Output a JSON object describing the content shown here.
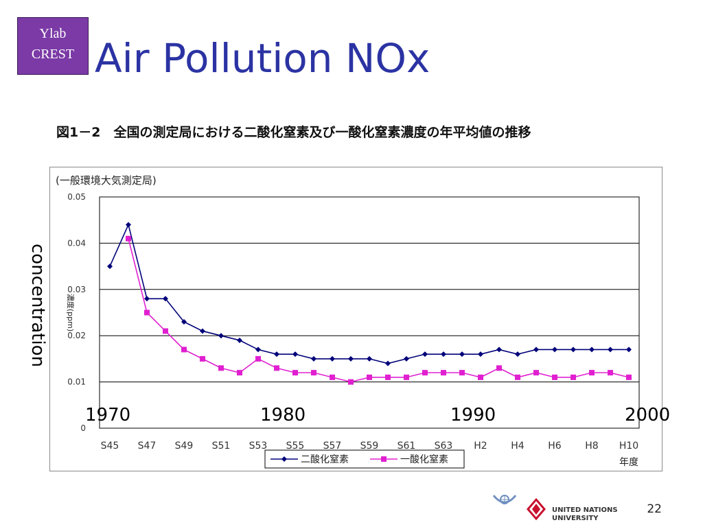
{
  "logo": {
    "line1": "Ylab",
    "line2": "CREST"
  },
  "slide_title": "Air Pollution NOx",
  "figure_caption": "図1－2　全国の測定局における二酸化窒素及び一酸化窒素濃度の年平均値の推移",
  "overlay": {
    "y_axis_label": "concentration",
    "decades": [
      "1970",
      "1980",
      "1990",
      "2000"
    ]
  },
  "page_number": "22",
  "footer": {
    "unu_line1": "UNITED NATIONS",
    "unu_line2": "UNIVERSITY"
  },
  "colors": {
    "title": "#2b33a3",
    "no2_series": "#00007a",
    "no_series": "#e020d0",
    "logo_bg": "#7b3aa6",
    "unu_red": "#c8102e"
  },
  "chart_data": {
    "type": "line",
    "subtitle": "(一般環境大気測定局)",
    "ylabel": "濃度(ppm)",
    "xlabel": "年度",
    "ylim": [
      0,
      0.05
    ],
    "y_ticks": [
      "0",
      "0.01",
      "0.02",
      "0.03",
      "0.04",
      "0.05"
    ],
    "grid": true,
    "legend_position": "bottom",
    "x": [
      "S45",
      "S46",
      "S47",
      "S48",
      "S49",
      "S50",
      "S51",
      "S52",
      "S53",
      "S54",
      "S55",
      "S56",
      "S57",
      "S58",
      "S59",
      "S60",
      "S61",
      "S62",
      "S63",
      "H1",
      "H2",
      "H3",
      "H4",
      "H5",
      "H6",
      "H7",
      "H8",
      "H9",
      "H10"
    ],
    "x_tick_labels": [
      "S45",
      "S47",
      "S49",
      "S51",
      "S53",
      "S55",
      "S57",
      "S59",
      "S61",
      "S63",
      "H2",
      "H4",
      "H6",
      "H8",
      "H10"
    ],
    "series": [
      {
        "name": "二酸化窒素",
        "color": "#00007a",
        "marker": "diamond",
        "values": [
          0.035,
          0.044,
          0.028,
          0.028,
          0.023,
          0.021,
          0.02,
          0.019,
          0.017,
          0.016,
          0.016,
          0.015,
          0.015,
          0.015,
          0.015,
          0.014,
          0.015,
          0.016,
          0.016,
          0.016,
          0.016,
          0.017,
          0.016,
          0.017,
          0.017,
          0.017,
          0.017,
          0.017,
          0.017
        ]
      },
      {
        "name": "一酸化窒素",
        "color": "#e020d0",
        "marker": "square",
        "values": [
          null,
          0.041,
          0.025,
          0.021,
          0.017,
          0.015,
          0.013,
          0.012,
          0.015,
          0.013,
          0.012,
          0.012,
          0.011,
          0.01,
          0.011,
          0.011,
          0.011,
          0.012,
          0.012,
          0.012,
          0.011,
          0.013,
          0.011,
          0.012,
          0.011,
          0.011,
          0.012,
          0.012,
          0.011
        ]
      }
    ]
  }
}
